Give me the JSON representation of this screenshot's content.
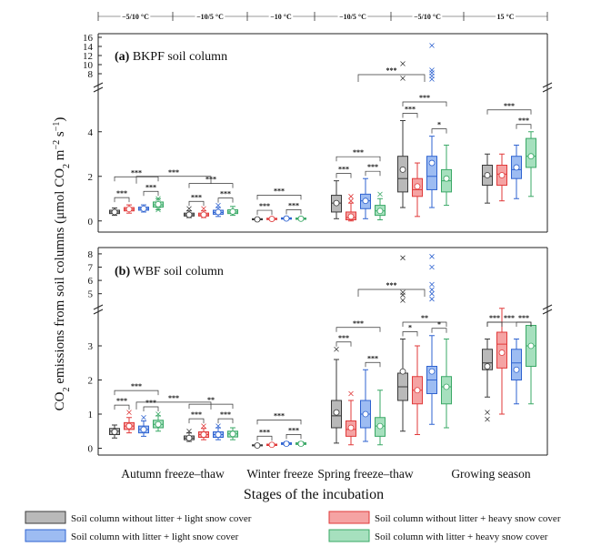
{
  "chart_data": {
    "type": "box",
    "xlabel": "Stages of the incubation",
    "ylabel_parts": [
      "CO",
      "2",
      " emissions from soil columns (μmol CO",
      "2",
      " m",
      "−2",
      " s",
      "−1",
      ")"
    ],
    "temperature_labels": [
      "−5/10 °C",
      "−10/5 °C",
      "−10 °C",
      "−10/5 °C",
      "−5/10 °C",
      "15 °C"
    ],
    "stages": [
      "Autumn freeze–thaw",
      "Winter freeze",
      "Spring freeze–thaw",
      "Growing season"
    ],
    "groups": [
      {
        "stage": "Autumn freeze–thaw",
        "temp": "−5/10 °C"
      },
      {
        "stage": "Autumn freeze–thaw",
        "temp": "−10/5 °C"
      },
      {
        "stage": "Winter freeze",
        "temp": "−10 °C"
      },
      {
        "stage": "Spring freeze–thaw",
        "temp": "−10/5 °C"
      },
      {
        "stage": "Spring freeze–thaw",
        "temp": "−5/10 °C"
      },
      {
        "stage": "Growing season",
        "temp": "15 °C"
      }
    ],
    "series": [
      {
        "name": "Soil column without litter + light snow cover",
        "fill": "#b9b9b9",
        "stroke": "#3a3a3a"
      },
      {
        "name": "Soil column without litter + heavy snow cover",
        "fill": "#f5a3a3",
        "stroke": "#e03a3a"
      },
      {
        "name": "Soil column with litter + light snow cover",
        "fill": "#9dbcf2",
        "stroke": "#2f63d0"
      },
      {
        "name": "Soil column with litter + heavy snow cover",
        "fill": "#a6e0be",
        "stroke": "#3aa866"
      }
    ],
    "legend_placement": "bottom",
    "panels": [
      {
        "title_bold": "(a)",
        "title_rest": " BKPF soil column",
        "lower_axis": {
          "min": -0.5,
          "max": 5.5,
          "ticks": [
            0,
            2,
            4
          ]
        },
        "upper_axis": {
          "min": 7,
          "max": 16,
          "ticks": [
            8,
            10,
            12,
            14,
            16
          ]
        },
        "boxes": [
          [
            {
              "min": 0.25,
              "q1": 0.33,
              "median": 0.4,
              "q3": 0.48,
              "max": 0.58,
              "mean": 0.4,
              "outliers": []
            },
            {
              "min": 0.35,
              "q1": 0.45,
              "median": 0.52,
              "q3": 0.6,
              "max": 0.72,
              "mean": 0.53,
              "outliers": []
            },
            {
              "min": 0.4,
              "q1": 0.48,
              "median": 0.55,
              "q3": 0.62,
              "max": 0.72,
              "mean": 0.55,
              "outliers": []
            },
            {
              "min": 0.5,
              "q1": 0.62,
              "median": 0.72,
              "q3": 0.85,
              "max": 1.0,
              "mean": 0.75,
              "outliers": [
                0.5,
                1.0
              ]
            }
          ],
          [
            {
              "min": 0.15,
              "q1": 0.22,
              "median": 0.28,
              "q3": 0.35,
              "max": 0.45,
              "mean": 0.28,
              "outliers": [
                0.55
              ]
            },
            {
              "min": 0.15,
              "q1": 0.22,
              "median": 0.28,
              "q3": 0.35,
              "max": 0.45,
              "mean": 0.28,
              "outliers": [
                0.55
              ]
            },
            {
              "min": 0.2,
              "q1": 0.3,
              "median": 0.38,
              "q3": 0.48,
              "max": 0.6,
              "mean": 0.4,
              "outliers": [
                0.7
              ]
            },
            {
              "min": 0.25,
              "q1": 0.33,
              "median": 0.4,
              "q3": 0.5,
              "max": 0.65,
              "mean": 0.42,
              "outliers": []
            }
          ],
          [
            {
              "min": 0.02,
              "q1": 0.05,
              "median": 0.07,
              "q3": 0.1,
              "max": 0.13,
              "mean": 0.07,
              "outliers": []
            },
            {
              "min": 0.03,
              "q1": 0.06,
              "median": 0.09,
              "q3": 0.12,
              "max": 0.15,
              "mean": 0.09,
              "outliers": []
            },
            {
              "min": 0.05,
              "q1": 0.08,
              "median": 0.11,
              "q3": 0.14,
              "max": 0.18,
              "mean": 0.11,
              "outliers": []
            },
            {
              "min": 0.04,
              "q1": 0.07,
              "median": 0.1,
              "q3": 0.13,
              "max": 0.17,
              "mean": 0.1,
              "outliers": []
            }
          ],
          [
            {
              "min": 0.1,
              "q1": 0.4,
              "median": 0.8,
              "q3": 1.15,
              "max": 1.8,
              "mean": 0.8,
              "outliers": []
            },
            {
              "min": 0.0,
              "q1": 0.05,
              "median": 0.15,
              "q3": 0.4,
              "max": 0.8,
              "mean": 0.2,
              "outliers": [
                0.9,
                1.1
              ]
            },
            {
              "min": 0.1,
              "q1": 0.55,
              "median": 0.9,
              "q3": 1.2,
              "max": 1.9,
              "mean": 0.9,
              "outliers": []
            },
            {
              "min": 0.05,
              "q1": 0.25,
              "median": 0.45,
              "q3": 0.7,
              "max": 1.0,
              "mean": 0.45,
              "outliers": [
                1.2
              ]
            }
          ],
          [
            {
              "min": 0.6,
              "q1": 1.3,
              "median": 1.9,
              "q3": 2.9,
              "max": 4.5,
              "mean": 2.3,
              "outliers": [
                7.0,
                10.2
              ]
            },
            {
              "min": 0.2,
              "q1": 1.1,
              "median": 1.4,
              "q3": 1.9,
              "max": 2.6,
              "mean": 1.55,
              "outliers": []
            },
            {
              "min": 0.6,
              "q1": 1.4,
              "median": 2.0,
              "q3": 2.9,
              "max": 3.8,
              "mean": 2.6,
              "outliers": [
                6.8,
                7.5,
                8.2,
                8.8,
                14.2
              ]
            },
            {
              "min": 0.7,
              "q1": 1.3,
              "median": 1.8,
              "q3": 2.3,
              "max": 3.4,
              "mean": 1.9,
              "outliers": []
            }
          ],
          [
            {
              "min": 0.8,
              "q1": 1.6,
              "median": 2.0,
              "q3": 2.5,
              "max": 3.0,
              "mean": 2.05,
              "outliers": []
            },
            {
              "min": 0.9,
              "q1": 1.6,
              "median": 2.1,
              "q3": 2.5,
              "max": 3.0,
              "mean": 2.05,
              "outliers": []
            },
            {
              "min": 1.0,
              "q1": 1.9,
              "median": 2.3,
              "q3": 2.9,
              "max": 3.4,
              "mean": 2.4,
              "outliers": []
            },
            {
              "min": 1.1,
              "q1": 2.4,
              "median": 2.9,
              "q3": 3.7,
              "max": 4.0,
              "mean": 2.9,
              "outliers": []
            }
          ]
        ],
        "significance": [
          {
            "group": 0,
            "pairs": [
              [
                0,
                1
              ],
              [
                2,
                3
              ],
              [
                0,
                3
              ]
            ],
            "label": "***"
          },
          {
            "group": 1,
            "pairs": [
              [
                0,
                1
              ],
              [
                2,
                3
              ],
              [
                0,
                3
              ]
            ],
            "label": "***"
          },
          {
            "group": 2,
            "pairs": [
              [
                0,
                1
              ],
              [
                2,
                3
              ],
              [
                0,
                3
              ]
            ],
            "label": "***"
          },
          {
            "group": 3,
            "pairs": [
              [
                0,
                1
              ],
              [
                2,
                3
              ],
              [
                0,
                3
              ]
            ],
            "label": "***"
          },
          {
            "group": 4,
            "pairs": [
              [
                0,
                1
              ],
              [
                2,
                3
              ],
              [
                0,
                3
              ]
            ],
            "labels": [
              "***",
              "*",
              "***"
            ]
          },
          {
            "group": 5,
            "pairs": [
              [
                2,
                3
              ],
              [
                0,
                3
              ]
            ],
            "label": "***"
          }
        ],
        "cross_significance": [
          {
            "from_group": 0,
            "to_group": 1,
            "label": "***"
          },
          {
            "from_group": 3,
            "to_group": 4,
            "label": "***"
          }
        ]
      },
      {
        "title_bold": "(b)",
        "title_rest": " WBF soil column",
        "lower_axis": {
          "min": -0.2,
          "max": 3.8,
          "ticks": [
            0,
            1,
            2,
            3
          ]
        },
        "upper_axis": {
          "min": 4.5,
          "max": 8.2,
          "ticks": [
            5,
            6,
            7,
            8
          ]
        },
        "boxes": [
          [
            {
              "min": 0.3,
              "q1": 0.4,
              "median": 0.5,
              "q3": 0.58,
              "max": 0.68,
              "mean": 0.48,
              "outliers": []
            },
            {
              "min": 0.45,
              "q1": 0.55,
              "median": 0.65,
              "q3": 0.75,
              "max": 0.9,
              "mean": 0.65,
              "outliers": [
                1.05
              ]
            },
            {
              "min": 0.35,
              "q1": 0.45,
              "median": 0.55,
              "q3": 0.65,
              "max": 0.8,
              "mean": 0.55,
              "outliers": [
                0.9
              ]
            },
            {
              "min": 0.5,
              "q1": 0.6,
              "median": 0.7,
              "q3": 0.82,
              "max": 0.95,
              "mean": 0.7,
              "outliers": [
                1.0
              ]
            }
          ],
          [
            {
              "min": 0.2,
              "q1": 0.25,
              "median": 0.3,
              "q3": 0.36,
              "max": 0.45,
              "mean": 0.3,
              "outliers": [
                0.5
              ]
            },
            {
              "min": 0.25,
              "q1": 0.32,
              "median": 0.4,
              "q3": 0.48,
              "max": 0.58,
              "mean": 0.4,
              "outliers": [
                0.65
              ]
            },
            {
              "min": 0.25,
              "q1": 0.32,
              "median": 0.4,
              "q3": 0.48,
              "max": 0.6,
              "mean": 0.4,
              "outliers": [
                0.65
              ]
            },
            {
              "min": 0.25,
              "q1": 0.33,
              "median": 0.42,
              "q3": 0.5,
              "max": 0.6,
              "mean": 0.42,
              "outliers": []
            }
          ],
          [
            {
              "min": 0.05,
              "q1": 0.07,
              "median": 0.08,
              "q3": 0.1,
              "max": 0.12,
              "mean": 0.08,
              "outliers": []
            },
            {
              "min": 0.06,
              "q1": 0.08,
              "median": 0.1,
              "q3": 0.12,
              "max": 0.14,
              "mean": 0.1,
              "outliers": []
            },
            {
              "min": 0.08,
              "q1": 0.11,
              "median": 0.13,
              "q3": 0.16,
              "max": 0.19,
              "mean": 0.13,
              "outliers": []
            },
            {
              "min": 0.08,
              "q1": 0.11,
              "median": 0.13,
              "q3": 0.16,
              "max": 0.19,
              "mean": 0.13,
              "outliers": []
            }
          ],
          [
            {
              "min": 0.15,
              "q1": 0.6,
              "median": 0.95,
              "q3": 1.4,
              "max": 2.6,
              "mean": 1.05,
              "outliers": [
                2.9
              ]
            },
            {
              "min": 0.1,
              "q1": 0.35,
              "median": 0.55,
              "q3": 0.8,
              "max": 1.4,
              "mean": 0.6,
              "outliers": [
                1.6
              ]
            },
            {
              "min": 0.2,
              "q1": 0.6,
              "median": 1.0,
              "q3": 1.4,
              "max": 2.3,
              "mean": 1.0,
              "outliers": []
            },
            {
              "min": 0.1,
              "q1": 0.35,
              "median": 0.65,
              "q3": 0.9,
              "max": 1.7,
              "mean": 0.65,
              "outliers": []
            }
          ],
          [
            {
              "min": 0.5,
              "q1": 1.4,
              "median": 1.8,
              "q3": 2.2,
              "max": 3.2,
              "mean": 2.25,
              "outliers": [
                4.5,
                4.9,
                5.1,
                7.7
              ]
            },
            {
              "min": 0.4,
              "q1": 1.3,
              "median": 1.7,
              "q3": 2.1,
              "max": 3.0,
              "mean": 1.7,
              "outliers": []
            },
            {
              "min": 0.7,
              "q1": 1.6,
              "median": 2.0,
              "q3": 2.4,
              "max": 3.3,
              "mean": 2.25,
              "outliers": [
                4.6,
                5.0,
                5.3,
                5.7,
                7.0,
                7.8
              ]
            },
            {
              "min": 0.6,
              "q1": 1.3,
              "median": 1.8,
              "q3": 2.1,
              "max": 3.2,
              "mean": 1.8,
              "outliers": []
            }
          ],
          [
            {
              "min": 1.5,
              "q1": 2.3,
              "median": 2.5,
              "q3": 2.9,
              "max": 3.2,
              "mean": 2.4,
              "outliers": [
                0.85,
                1.05
              ]
            },
            {
              "min": 1.0,
              "q1": 2.35,
              "median": 3.05,
              "q3": 3.4,
              "max": 3.9,
              "mean": 2.8,
              "outliers": []
            },
            {
              "min": 1.3,
              "q1": 2.0,
              "median": 2.5,
              "q3": 2.9,
              "max": 3.2,
              "mean": 2.3,
              "outliers": []
            },
            {
              "min": 1.3,
              "q1": 2.4,
              "median": 3.0,
              "q3": 3.6,
              "max": 3.6,
              "mean": 3.0,
              "outliers": []
            }
          ]
        ],
        "significance": [
          {
            "group": 0,
            "pairs": [
              [
                0,
                1
              ],
              [
                2,
                3
              ],
              [
                0,
                3
              ]
            ],
            "label": "***"
          },
          {
            "group": 1,
            "pairs": [
              [
                0,
                1
              ],
              [
                2,
                3
              ],
              [
                0,
                3
              ]
            ],
            "labels": [
              "***",
              "***",
              "**"
            ]
          },
          {
            "group": 2,
            "pairs": [
              [
                0,
                1
              ],
              [
                2,
                3
              ],
              [
                0,
                3
              ]
            ],
            "label": "***"
          },
          {
            "group": 3,
            "pairs": [
              [
                0,
                1
              ],
              [
                2,
                3
              ],
              [
                0,
                3
              ]
            ],
            "label": "***"
          },
          {
            "group": 4,
            "pairs": [
              [
                0,
                1
              ],
              [
                2,
                3
              ],
              [
                0,
                3
              ]
            ],
            "labels": [
              "*",
              "*",
              "**"
            ]
          },
          {
            "group": 5,
            "pairs": [
              [
                0,
                1
              ],
              [
                2,
                3
              ],
              [
                0,
                3
              ]
            ],
            "label": "***"
          }
        ],
        "cross_significance": [
          {
            "from_group": 0,
            "to_group": 1,
            "label": "***"
          },
          {
            "from_group": 3,
            "to_group": 4,
            "label": "***"
          }
        ]
      }
    ]
  }
}
